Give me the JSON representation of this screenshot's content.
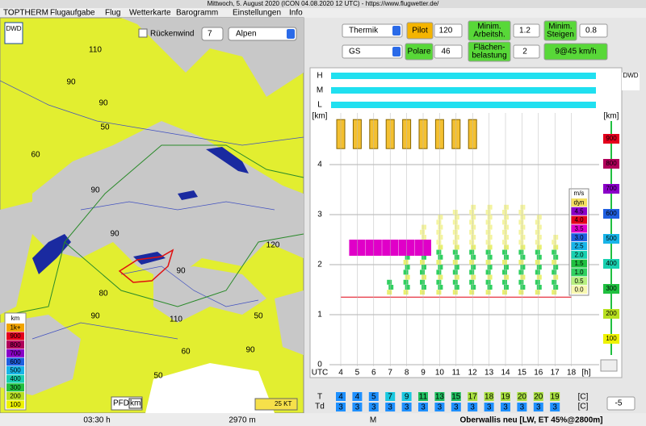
{
  "window_title": "Mittwoch, 5. August 2020 (ICON 04.08.2020 12 UTC) - https://www.flugwetter.de/",
  "menu": [
    "TOPTHERM",
    "Flugaufgabe",
    "Flug",
    "Wetterkarte",
    "Barogramm",
    "Einstellungen",
    "Info"
  ],
  "map": {
    "logo": "DWD",
    "tailwind_label": "Rückenwind",
    "tailwind_value": "7",
    "region": "Alpen",
    "contour_labels": [
      "110",
      "90",
      "90",
      "50",
      "60",
      "90",
      "90",
      "120",
      "90",
      "80",
      "90",
      "110",
      "50",
      "60",
      "90",
      "50"
    ],
    "legend": {
      "title": "km",
      "items": [
        "1k+",
        "900",
        "800",
        "700",
        "600",
        "500",
        "400",
        "300",
        "200",
        "100"
      ],
      "colors": [
        "#f2a400",
        "#e4001c",
        "#b0005a",
        "#8a00c8",
        "#1f5fe0",
        "#18b4e8",
        "#18d0b0",
        "#20c040",
        "#b8e020",
        "#eef200"
      ]
    },
    "pfd": "PFD",
    "pfd_unit": "km",
    "wind_scale": "25 KT"
  },
  "panel": {
    "mode": "Thermik",
    "pilot_label": "Pilot",
    "pilot_value": "120",
    "min_height_label": [
      "Minim.",
      "Arbeitsh."
    ],
    "min_height_value": "1.2",
    "min_climb_label": [
      "Minim.",
      "Steigen"
    ],
    "min_climb_value": "0.8",
    "glider": "GS",
    "polar_label": "Polare",
    "polar_value": "46",
    "wing_load_label": [
      "Flächen-",
      "belastung"
    ],
    "wing_load_value": "2",
    "speed": "9@45 km/h"
  },
  "chart": {
    "logo": "DWD",
    "layers": [
      "H",
      "M",
      "L"
    ],
    "y_unit": "[km]",
    "yticks": [
      0,
      1,
      2,
      3,
      4
    ],
    "right_unit": "[km]",
    "right_ticks": [
      "900",
      "800",
      "700",
      "600",
      "500",
      "400",
      "300",
      "200",
      "100"
    ],
    "right_colors": [
      "#e4001c",
      "#b0005a",
      "#8a00c8",
      "#1f5fe0",
      "#18b4e8",
      "#18d0b0",
      "#20c040",
      "#b8e020",
      "#eef200"
    ],
    "x_label": "UTC",
    "hours": [
      4,
      5,
      6,
      7,
      8,
      9,
      10,
      11,
      12,
      13,
      14,
      15,
      16,
      17,
      18
    ],
    "x_unit": "[h]",
    "legend_title": "m/s",
    "legend_items": [
      "dyn",
      "4.5",
      "4.0",
      "3.5",
      "3.0",
      "2.5",
      "2.0",
      "1.5",
      "1.0",
      "0.5",
      "0.0"
    ],
    "legend_colors": [
      "#f4e060",
      "#8a00c8",
      "#e4001c",
      "#e000c8",
      "#1f5fe0",
      "#18b4e8",
      "#18d0b0",
      "#20c040",
      "#30d060",
      "#b8f080",
      "#f8f8b0"
    ]
  },
  "temps": {
    "t_label": "T",
    "t_values": [
      4,
      4,
      5,
      7,
      9,
      11,
      13,
      15,
      17,
      18,
      19,
      20,
      20,
      19
    ],
    "td_label": "Td",
    "td_values": [
      3,
      3,
      3,
      3,
      3,
      3,
      3,
      3,
      3,
      3,
      3,
      3,
      3,
      3
    ],
    "unit": "[C]",
    "offset": "-5"
  },
  "status": [
    "03:30 h",
    "2970 m",
    "M",
    "Oberwallis neu [LW, ET  45%@2800m]"
  ]
}
